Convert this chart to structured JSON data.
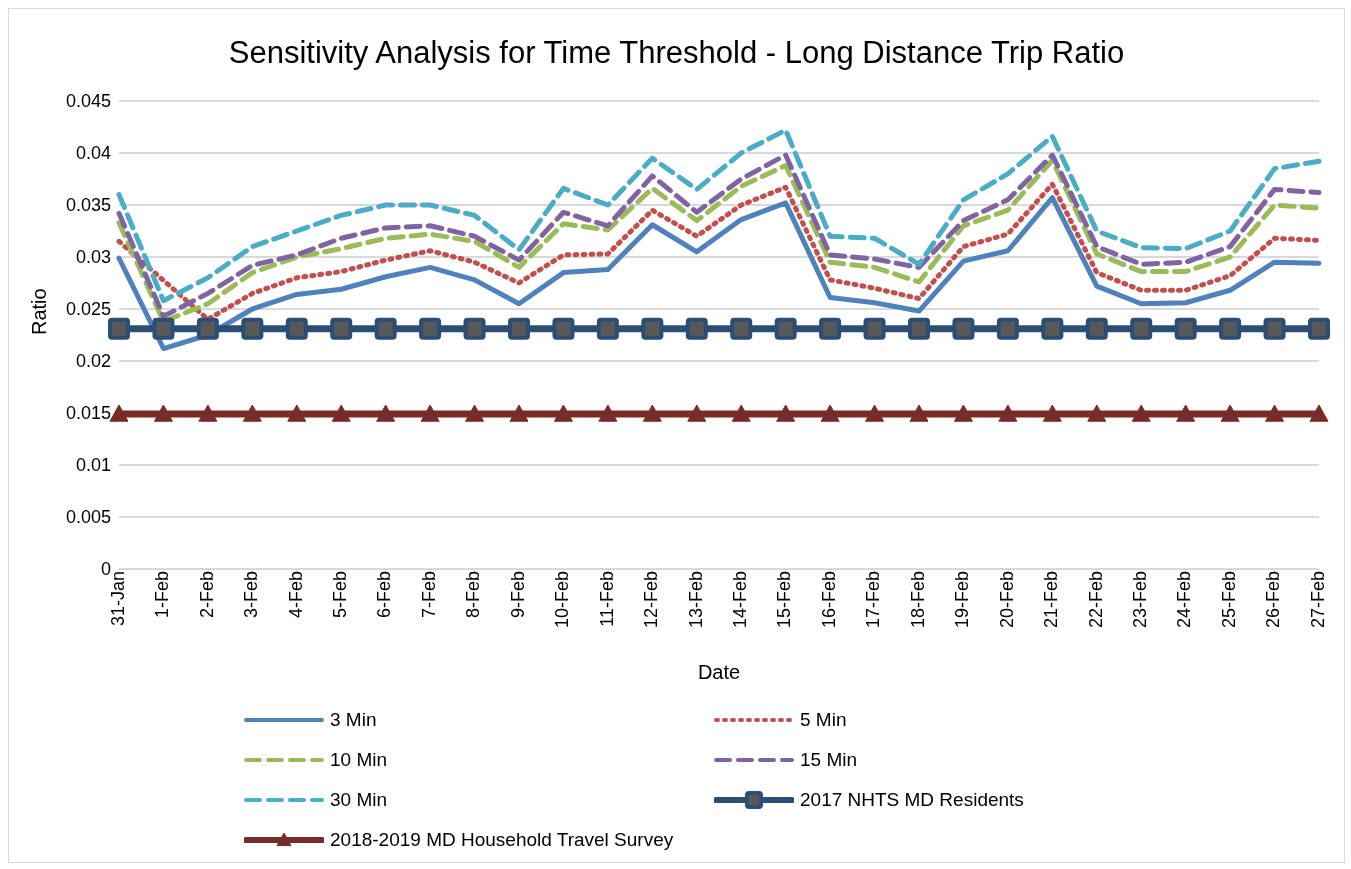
{
  "chart_data": {
    "type": "line",
    "title": "Sensitivity Analysis for Time Threshold - Long Distance Trip Ratio",
    "xlabel": "Date",
    "ylabel": "Ratio",
    "categories": [
      "31-Jan",
      "1-Feb",
      "2-Feb",
      "3-Feb",
      "4-Feb",
      "5-Feb",
      "6-Feb",
      "7-Feb",
      "8-Feb",
      "9-Feb",
      "10-Feb",
      "11-Feb",
      "12-Feb",
      "13-Feb",
      "14-Feb",
      "15-Feb",
      "16-Feb",
      "17-Feb",
      "18-Feb",
      "19-Feb",
      "20-Feb",
      "21-Feb",
      "22-Feb",
      "23-Feb",
      "24-Feb",
      "25-Feb",
      "26-Feb",
      "27-Feb"
    ],
    "ylim": [
      0,
      0.045
    ],
    "yticks": [
      0,
      0.005,
      0.01,
      0.015,
      0.02,
      0.025,
      0.03,
      0.035,
      0.04,
      0.045
    ],
    "grid": "y",
    "legend": "bottom",
    "series": [
      {
        "name": "3 Min",
        "color": "#4f81bd",
        "line_style": "solid",
        "marker": "none",
        "values": [
          0.0299,
          0.0212,
          0.0225,
          0.025,
          0.0264,
          0.0269,
          0.0281,
          0.029,
          0.0278,
          0.0255,
          0.0285,
          0.0288,
          0.0331,
          0.0305,
          0.0336,
          0.0352,
          0.0261,
          0.0256,
          0.0248,
          0.0296,
          0.0306,
          0.0357,
          0.0272,
          0.0255,
          0.0256,
          0.0268,
          0.0295,
          0.0294
        ]
      },
      {
        "name": "5 Min",
        "color": "#c0504d",
        "line_style": "dotted",
        "marker": "none",
        "values": [
          0.0315,
          null,
          0.024,
          0.0265,
          0.028,
          0.0286,
          0.0297,
          0.0306,
          0.0295,
          0.0275,
          0.0302,
          0.0303,
          0.0345,
          0.032,
          0.035,
          0.0367,
          0.0278,
          0.027,
          0.026,
          0.031,
          0.0322,
          0.037,
          0.0285,
          0.0268,
          0.0268,
          0.0282,
          0.0318,
          0.0316
        ]
      },
      {
        "name": "10 Min",
        "color": "#9bbb59",
        "line_style": "dashed",
        "marker": "none",
        "values": [
          0.0333,
          0.0238,
          0.0255,
          0.0285,
          0.03,
          0.0308,
          0.0318,
          0.0322,
          0.0315,
          0.029,
          0.0332,
          0.0326,
          0.0366,
          0.0335,
          0.0368,
          0.0388,
          0.0295,
          0.029,
          0.0276,
          0.033,
          0.0345,
          0.0393,
          0.0303,
          0.0286,
          0.0286,
          0.03,
          0.035,
          0.0347
        ]
      },
      {
        "name": "15 Min",
        "color": "#8064a2",
        "line_style": "dashed",
        "marker": "none",
        "values": [
          0.0342,
          0.0243,
          0.0265,
          0.0292,
          0.0302,
          0.0318,
          0.0328,
          0.033,
          0.032,
          0.0297,
          0.0343,
          0.033,
          0.0378,
          0.0343,
          0.0375,
          0.0398,
          0.0302,
          0.0298,
          0.029,
          0.0335,
          0.0355,
          0.0398,
          0.031,
          0.0293,
          0.0295,
          0.031,
          0.0365,
          0.0362
        ]
      },
      {
        "name": "30 Min",
        "color": "#4bacc6",
        "line_style": "dashed",
        "marker": "none",
        "values": [
          0.036,
          0.0258,
          0.028,
          0.031,
          0.0325,
          0.034,
          0.035,
          0.035,
          0.034,
          0.0307,
          0.0366,
          0.035,
          0.0395,
          0.0365,
          0.04,
          0.0422,
          0.032,
          0.0318,
          0.0293,
          0.0355,
          0.038,
          0.0416,
          0.0325,
          0.0309,
          0.0308,
          0.0325,
          0.0385,
          0.0392
        ]
      },
      {
        "name": "2017 NHTS MD Residents",
        "color": "#2c4d75",
        "line_style": "solid",
        "marker": "square",
        "values": [
          0.0231,
          0.0231,
          0.0231,
          0.0231,
          0.0231,
          0.0231,
          0.0231,
          0.0231,
          0.0231,
          0.0231,
          0.0231,
          0.0231,
          0.0231,
          0.0231,
          0.0231,
          0.0231,
          0.0231,
          0.0231,
          0.0231,
          0.0231,
          0.0231,
          0.0231,
          0.0231,
          0.0231,
          0.0231,
          0.0231,
          0.0231,
          0.0231
        ]
      },
      {
        "name": "2018-2019 MD  Household Travel Survey",
        "color": "#772c2a",
        "line_style": "solid",
        "marker": "triangle",
        "values": [
          0.0149,
          0.0149,
          0.0149,
          0.0149,
          0.0149,
          0.0149,
          0.0149,
          0.0149,
          0.0149,
          0.0149,
          0.0149,
          0.0149,
          0.0149,
          0.0149,
          0.0149,
          0.0149,
          0.0149,
          0.0149,
          0.0149,
          0.0149,
          0.0149,
          0.0149,
          0.0149,
          0.0149,
          0.0149,
          0.0149,
          0.0149,
          0.0149
        ]
      }
    ]
  }
}
